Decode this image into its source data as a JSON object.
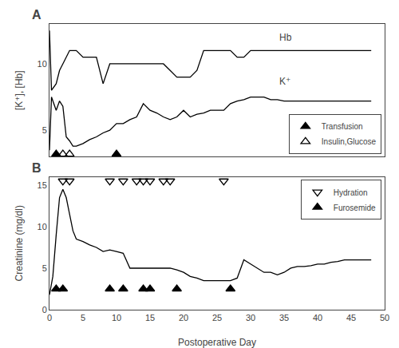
{
  "chart_data": [
    {
      "type": "line",
      "title": "A",
      "ylabel": "[K⁺], [Hb]",
      "xlim": [
        0,
        50
      ],
      "xticks": [
        0,
        5,
        10,
        15,
        20,
        25,
        30,
        35,
        40,
        45,
        50
      ],
      "ylim": [
        3,
        13
      ],
      "yticks": [
        5,
        10
      ],
      "tick_labels": "y",
      "grid": false,
      "legend": "lower right",
      "series": [
        {
          "type": "line",
          "color": "black",
          "x": [
            0,
            0.3,
            1,
            1.5,
            2,
            3,
            4,
            5,
            6,
            7,
            8,
            9,
            10,
            11,
            12,
            13,
            14,
            15,
            16,
            17,
            18,
            19,
            20,
            21,
            22,
            23,
            24,
            25,
            26,
            27,
            28,
            29,
            30,
            31,
            32,
            33,
            34,
            35,
            36,
            37,
            38,
            39,
            40,
            41,
            42,
            43,
            44,
            45,
            46,
            47,
            48
          ],
          "values": [
            12.5,
            8.0,
            8.5,
            9.5,
            10.0,
            11.0,
            11.0,
            10.5,
            10.5,
            10.5,
            8.5,
            10.0,
            10.0,
            10.0,
            10.0,
            10.0,
            10.0,
            10.0,
            10.0,
            10.0,
            9.5,
            9.0,
            9.0,
            9.0,
            9.5,
            11.0,
            11.0,
            11.0,
            11.0,
            11.0,
            10.5,
            10.5,
            11.0,
            11.0,
            11.0,
            11.0,
            11.0,
            11.0,
            11.0,
            11.0,
            11.0,
            11.0,
            11.0,
            11.0,
            11.0,
            11.0,
            11.0,
            11.0,
            11.0,
            11.0,
            11.0
          ]
        },
        {
          "type": "line",
          "color": "black",
          "x": [
            0,
            0.3,
            1,
            1.5,
            2,
            2.5,
            3,
            3.5,
            4,
            5,
            6,
            7,
            8,
            9,
            10,
            11,
            12,
            13,
            14,
            15,
            16,
            17,
            18,
            19,
            20,
            21,
            22,
            23,
            24,
            25,
            26,
            27,
            28,
            29,
            30,
            31,
            32,
            33,
            34,
            35,
            36,
            37,
            38,
            39,
            40,
            41,
            42,
            43,
            44,
            45,
            46,
            47,
            48
          ],
          "values": [
            3.5,
            7.5,
            6.5,
            7.2,
            6.8,
            4.5,
            4.2,
            3.8,
            3.8,
            4.0,
            4.3,
            4.5,
            4.8,
            5.0,
            5.5,
            5.5,
            5.8,
            6.0,
            7.0,
            6.5,
            6.3,
            6.0,
            5.8,
            6.0,
            6.5,
            6.0,
            6.2,
            6.3,
            6.5,
            6.5,
            6.5,
            7.0,
            7.2,
            7.3,
            7.5,
            7.5,
            7.5,
            7.3,
            7.3,
            7.2,
            7.2,
            7.2,
            7.2,
            7.2,
            7.2,
            7.2,
            7.2,
            7.2,
            7.2,
            7.2,
            7.2,
            7.2,
            7.2
          ]
        },
        {
          "name": "Transfusion",
          "type": "scatter",
          "marker": "triangle-up",
          "color": "black",
          "x": [
            1,
            10
          ],
          "values": [
            3.2,
            3.2
          ]
        },
        {
          "name": "Insulin,Glucose",
          "type": "scatter",
          "marker": "triangle-up-open",
          "color": "black",
          "x": [
            2,
            3
          ],
          "values": [
            3.2,
            3.2
          ]
        }
      ],
      "annotations": [
        {
          "text": "Hb",
          "x": 34,
          "y": 12.0
        },
        {
          "text": "K⁺",
          "x": 34,
          "y": 8.7
        }
      ]
    },
    {
      "type": "line",
      "title": "B",
      "xlabel": "Postoperative Day",
      "ylabel": "Creatinine (mg/dl)",
      "xlim": [
        0,
        50
      ],
      "xticks": [
        0,
        5,
        10,
        15,
        20,
        25,
        30,
        35,
        40,
        45,
        50
      ],
      "ylim": [
        0,
        16
      ],
      "yticks": [
        0,
        5,
        10,
        15
      ],
      "grid": false,
      "legend": "upper right",
      "series": [
        {
          "type": "line",
          "color": "black",
          "x": [
            0,
            0.5,
            1,
            1.5,
            2,
            2.5,
            3,
            3.5,
            4,
            5,
            6,
            7,
            8,
            9,
            10,
            11,
            12,
            13,
            14,
            15,
            16,
            17,
            18,
            19,
            20,
            21,
            22,
            23,
            24,
            25,
            26,
            27,
            28,
            29,
            30,
            31,
            32,
            33,
            34,
            35,
            36,
            37,
            38,
            39,
            40,
            41,
            42,
            43,
            44,
            45,
            46,
            47,
            48
          ],
          "values": [
            1.8,
            4.0,
            9.0,
            13.5,
            14.5,
            13.5,
            11.5,
            9.5,
            8.5,
            8.2,
            7.8,
            7.5,
            7.0,
            7.2,
            7.0,
            6.8,
            5.0,
            5.0,
            5.0,
            5.0,
            5.0,
            5.0,
            5.0,
            4.8,
            4.5,
            4.0,
            3.8,
            3.5,
            3.5,
            3.5,
            3.5,
            3.5,
            3.8,
            6.0,
            5.5,
            5.0,
            4.5,
            4.5,
            4.2,
            4.5,
            5.0,
            5.2,
            5.2,
            5.3,
            5.5,
            5.5,
            5.7,
            5.8,
            6.0,
            6.0,
            6.0,
            6.0,
            6.0
          ]
        },
        {
          "name": "Hydration",
          "type": "scatter",
          "marker": "triangle-down-open",
          "color": "black",
          "x": [
            2,
            3,
            9,
            11,
            13,
            14,
            15,
            17,
            18,
            26
          ],
          "values": [
            15.5,
            15.5,
            15.5,
            15.5,
            15.5,
            15.5,
            15.5,
            15.5,
            15.5,
            15.5
          ]
        },
        {
          "name": "Furosemide",
          "type": "scatter",
          "marker": "triangle-up",
          "color": "black",
          "x": [
            1,
            2,
            9,
            11,
            14,
            15,
            19,
            27
          ],
          "values": [
            2.5,
            2.5,
            2.5,
            2.5,
            2.5,
            2.5,
            2.5,
            2.5
          ]
        }
      ]
    }
  ]
}
